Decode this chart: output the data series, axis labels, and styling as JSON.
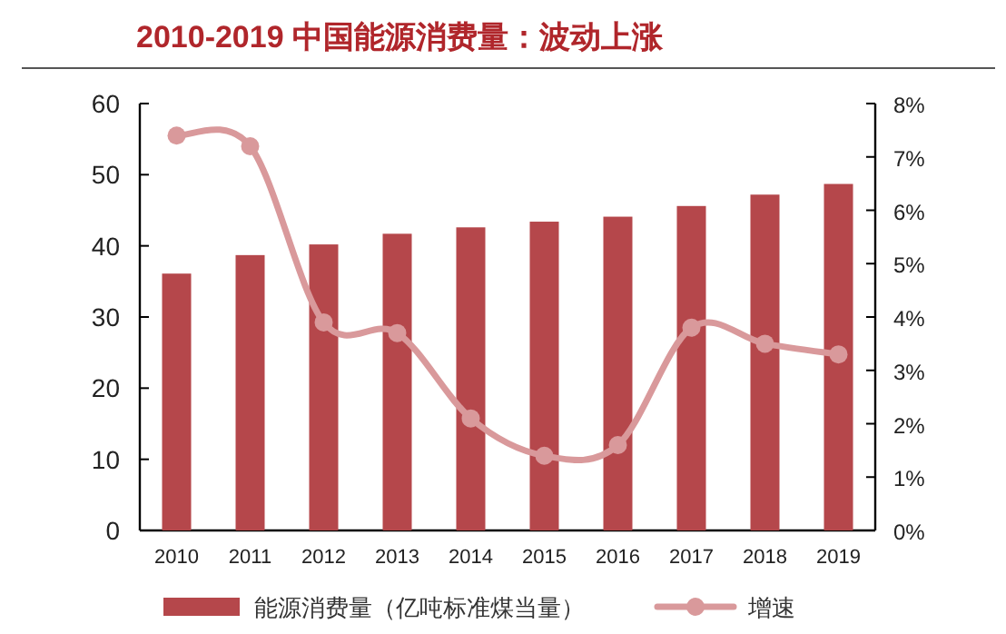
{
  "chart_data": {
    "type": "bar",
    "title": "2010-2019 中国能源消费量：波动上涨",
    "categories": [
      "2010",
      "2011",
      "2012",
      "2013",
      "2014",
      "2015",
      "2016",
      "2017",
      "2018",
      "2019"
    ],
    "series": [
      {
        "name": "能源消费量（亿吨标准煤当量）",
        "color": "#b5474b",
        "values": [
          36.1,
          38.7,
          40.2,
          41.7,
          42.6,
          43.4,
          44.1,
          45.6,
          47.2,
          48.7
        ]
      },
      {
        "name": "增速",
        "type": "line",
        "axis": "y2",
        "color": "#d9999b",
        "marker": "circle",
        "values": [
          7.4,
          7.2,
          3.9,
          3.7,
          2.1,
          1.4,
          1.6,
          3.8,
          3.5,
          3.3
        ]
      }
    ],
    "ylim": [
      0,
      60
    ],
    "yticks": [
      0,
      10,
      20,
      30,
      40,
      50,
      60
    ],
    "y2lim": [
      0,
      8
    ],
    "y2ticks": [
      {
        "value": 0,
        "label": "0%"
      },
      {
        "value": 1,
        "label": "1%"
      },
      {
        "value": 2,
        "label": "2%"
      },
      {
        "value": 3,
        "label": "3%"
      },
      {
        "value": 4,
        "label": "4%"
      },
      {
        "value": 5,
        "label": "5%"
      },
      {
        "value": 6,
        "label": "6%"
      },
      {
        "value": 7,
        "label": "7%"
      },
      {
        "value": 8,
        "label": "8%"
      }
    ],
    "legend": "bottom"
  }
}
